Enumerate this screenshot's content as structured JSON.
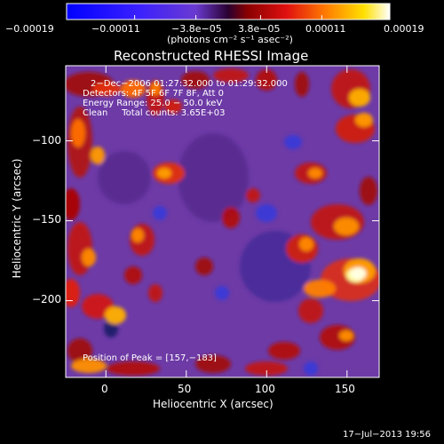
{
  "chart_data": {
    "type": "heatmap",
    "title": "Reconstructed RHESSI Image",
    "xlabel": "Heliocentric X (arcsec)",
    "ylabel": "Heliocentric Y (arcsec)",
    "xlim": [
      -25,
      170
    ],
    "ylim": [
      -248,
      -53
    ],
    "x_ticks": [
      0,
      50,
      100,
      150
    ],
    "x_tick_labels": [
      "0",
      "50",
      "100",
      "150"
    ],
    "y_ticks": [
      -100,
      -150,
      -200
    ],
    "y_tick_labels": [
      "−100",
      "−150",
      "−200"
    ],
    "colorbar": {
      "range": [
        -0.00019,
        0.00019
      ],
      "tick_values": [
        -0.00019,
        -0.00011,
        -3.8e-05,
        3.8e-05,
        0.00011,
        0.00019
      ],
      "tick_labels": [
        "−0.00019",
        "−0.00011",
        "−3.8e−05",
        "3.8e−05",
        "0.00011",
        "0.00019"
      ],
      "unit_label": "(photons cm⁻² s⁻¹ asec⁻²)"
    },
    "annotations": [
      "2−Dec−2006 01:27:32.000 to 01:29:32.000",
      "Detectors: 4F 5F 6F 7F 8F, Att 0",
      "Energy Range: 25.0 − 50.0 keV",
      "Clean     Total counts: 3.65E+03"
    ],
    "peak_label": "Position of Peak = [157,−183]",
    "peak": [
      157,
      -183
    ],
    "colors": {
      "negative_low": "#0000ff",
      "mid": "#8a3fd0",
      "positive_high": "#ffffff"
    }
  },
  "footer": {
    "timestamp": "17−Jul−2013 19:56"
  }
}
